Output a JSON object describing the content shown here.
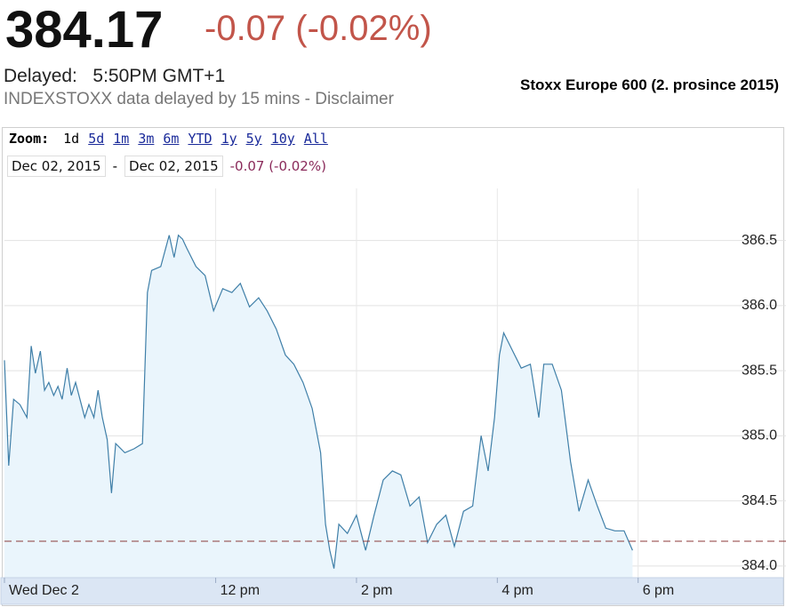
{
  "header": {
    "price": "384.17",
    "change": "-0.07 (-0.02%)",
    "delayed_label": "Delayed:",
    "delayed_time": "5:50PM GMT+1",
    "note": "INDEXSTOXX data delayed by 15 mins - Disclaimer"
  },
  "toolbar": {
    "zoom_label": "Zoom:",
    "zoom_options": [
      "1d",
      "5d",
      "1m",
      "3m",
      "6m",
      "YTD",
      "1y",
      "5y",
      "10y",
      "All"
    ],
    "from_date": "Dec 02, 2015",
    "separator": "-",
    "to_date": "Dec 02, 2015",
    "range_change": "-0.07 (-0.02%)"
  },
  "chart_data": {
    "type": "line",
    "title": "Stoxx Europe 600 (2. prosince 2015)",
    "x": [
      9.0,
      9.06,
      9.13,
      9.22,
      9.32,
      9.38,
      9.44,
      9.51,
      9.57,
      9.63,
      9.7,
      9.76,
      9.82,
      9.89,
      9.95,
      10.01,
      10.14,
      10.2,
      10.27,
      10.33,
      10.39,
      10.46,
      10.52,
      10.58,
      10.71,
      10.84,
      10.96,
      11.03,
      11.09,
      11.22,
      11.34,
      11.41,
      11.47,
      11.53,
      11.59,
      11.72,
      11.85,
      11.97,
      12.1,
      12.23,
      12.35,
      12.48,
      12.61,
      12.73,
      12.86,
      12.99,
      13.11,
      13.24,
      13.37,
      13.49,
      13.56,
      13.62,
      13.68,
      13.75,
      13.87,
      14.0,
      14.13,
      14.25,
      14.38,
      14.51,
      14.63,
      14.76,
      14.89,
      15.01,
      15.14,
      15.27,
      15.39,
      15.52,
      15.65,
      15.77,
      15.87,
      15.96,
      16.03,
      16.09,
      16.22,
      16.34,
      16.47,
      16.59,
      16.66,
      16.78,
      16.91,
      17.04,
      17.16,
      17.29,
      17.42,
      17.54,
      17.67,
      17.8,
      17.92
    ],
    "values": [
      385.58,
      384.77,
      385.28,
      385.24,
      385.14,
      385.69,
      385.48,
      385.65,
      385.35,
      385.41,
      385.31,
      385.38,
      385.28,
      385.52,
      385.31,
      385.41,
      385.14,
      385.24,
      385.14,
      385.35,
      385.14,
      384.97,
      384.56,
      384.94,
      384.87,
      384.9,
      384.94,
      386.1,
      386.27,
      386.3,
      386.54,
      386.37,
      386.54,
      386.51,
      386.44,
      386.3,
      386.23,
      385.96,
      386.13,
      386.1,
      386.17,
      385.99,
      386.06,
      385.96,
      385.82,
      385.62,
      385.55,
      385.41,
      385.21,
      384.87,
      384.32,
      384.12,
      383.98,
      384.32,
      384.25,
      384.39,
      384.12,
      384.39,
      384.66,
      384.73,
      384.7,
      384.46,
      384.53,
      384.18,
      384.32,
      384.39,
      384.15,
      384.42,
      384.46,
      385.0,
      384.73,
      385.14,
      385.62,
      385.79,
      385.65,
      385.52,
      385.55,
      385.14,
      385.55,
      385.55,
      385.35,
      384.8,
      384.42,
      384.66,
      384.46,
      384.29,
      384.27,
      384.27,
      384.12
    ],
    "color": "#3f7fa8",
    "fill": "#eaf5fc",
    "xlim": [
      9,
      20.1
    ],
    "ylim": [
      383.91,
      386.9
    ],
    "xticks": [
      {
        "value": 9,
        "label": "Wed Dec 2"
      },
      {
        "value": 12,
        "label": "12 pm"
      },
      {
        "value": 14,
        "label": "2 pm"
      },
      {
        "value": 16,
        "label": "4 pm"
      },
      {
        "value": 18,
        "label": "6 pm"
      }
    ],
    "yticks": [
      {
        "value": 384,
        "label": "384.0"
      },
      384.5,
      {
        "value": 385,
        "label": "385.0"
      },
      385.5,
      {
        "value": 386,
        "label": "386.0"
      },
      386.5
    ],
    "reference_line": 384.19,
    "grid": true
  }
}
